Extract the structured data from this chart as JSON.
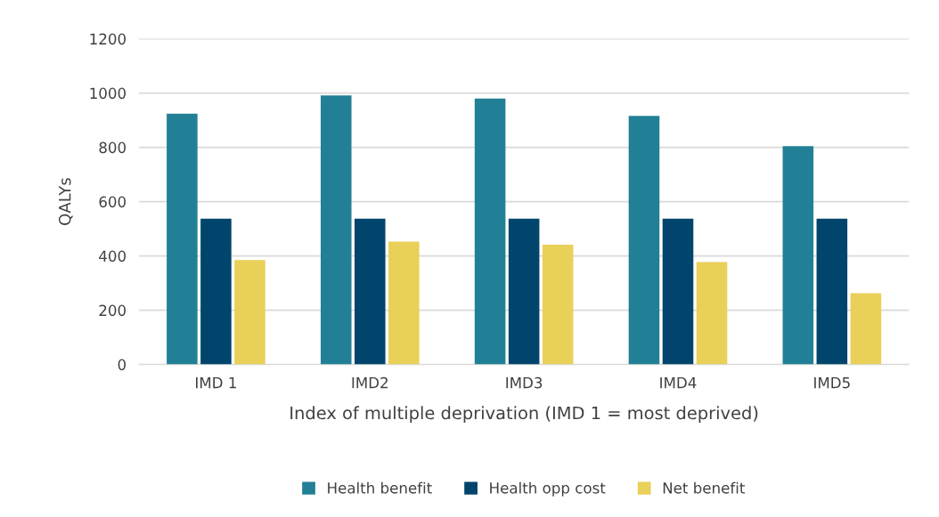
{
  "chart_data": {
    "type": "bar",
    "ylabel": "QALYs",
    "xlabel": "Index of multiple deprivation (IMD 1 = most deprived)",
    "categories": [
      "IMD 1",
      "IMD2",
      "IMD3",
      "IMD4",
      "IMD5"
    ],
    "series": [
      {
        "name": "Health benefit",
        "color": "#228096",
        "values": [
          924,
          991,
          980,
          916,
          804
        ]
      },
      {
        "name": "Health opp cost",
        "color": "#02456c",
        "values": [
          537,
          537,
          537,
          537,
          537
        ]
      },
      {
        "name": "Net benefit",
        "color": "#e9d058",
        "values": [
          385,
          453,
          441,
          377,
          263
        ]
      }
    ],
    "ylim": [
      0,
      1200
    ],
    "yticks": [
      0,
      200,
      400,
      600,
      800,
      1000,
      1200
    ],
    "grid": "y",
    "legend": "bottom"
  }
}
